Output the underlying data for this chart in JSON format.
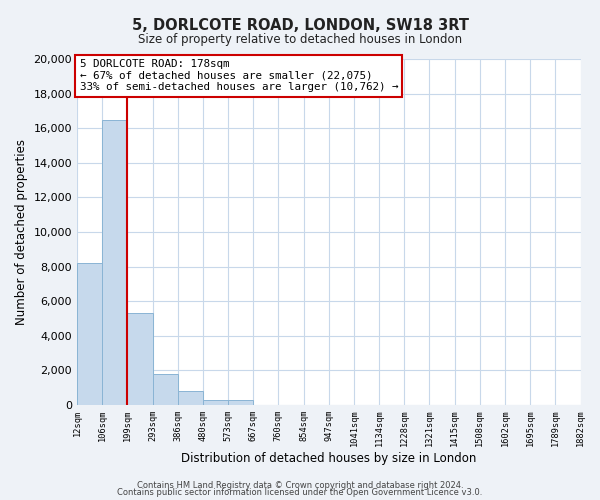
{
  "title": "5, DORLCOTE ROAD, LONDON, SW18 3RT",
  "subtitle": "Size of property relative to detached houses in London",
  "xlabel": "Distribution of detached houses by size in London",
  "ylabel": "Number of detached properties",
  "bin_labels": [
    "12sqm",
    "106sqm",
    "199sqm",
    "293sqm",
    "386sqm",
    "480sqm",
    "573sqm",
    "667sqm",
    "760sqm",
    "854sqm",
    "947sqm",
    "1041sqm",
    "1134sqm",
    "1228sqm",
    "1321sqm",
    "1415sqm",
    "1508sqm",
    "1602sqm",
    "1695sqm",
    "1789sqm",
    "1882sqm"
  ],
  "bar_values": [
    8200,
    16500,
    5300,
    1800,
    800,
    300,
    300,
    0,
    0,
    0,
    0,
    0,
    0,
    0,
    0,
    0,
    0,
    0,
    0,
    0
  ],
  "bar_color": "#c6d9ec",
  "bar_edge_color": "#8ab4d4",
  "property_sqm": 178,
  "property_label": "5 DORLCOTE ROAD: 178sqm",
  "annotation_line1": "← 67% of detached houses are smaller (22,075)",
  "annotation_line2": "33% of semi-detached houses are larger (10,762) →",
  "box_color": "#ffffff",
  "box_edge_color": "#cc0000",
  "property_line_color": "#cc0000",
  "ylim": [
    0,
    20000
  ],
  "yticks": [
    0,
    2000,
    4000,
    6000,
    8000,
    10000,
    12000,
    14000,
    16000,
    18000,
    20000
  ],
  "footer1": "Contains HM Land Registry data © Crown copyright and database right 2024.",
  "footer2": "Contains public sector information licensed under the Open Government Licence v3.0.",
  "background_color": "#eef2f7",
  "plot_bg_color": "#ffffff",
  "grid_color": "#c8d8ea"
}
